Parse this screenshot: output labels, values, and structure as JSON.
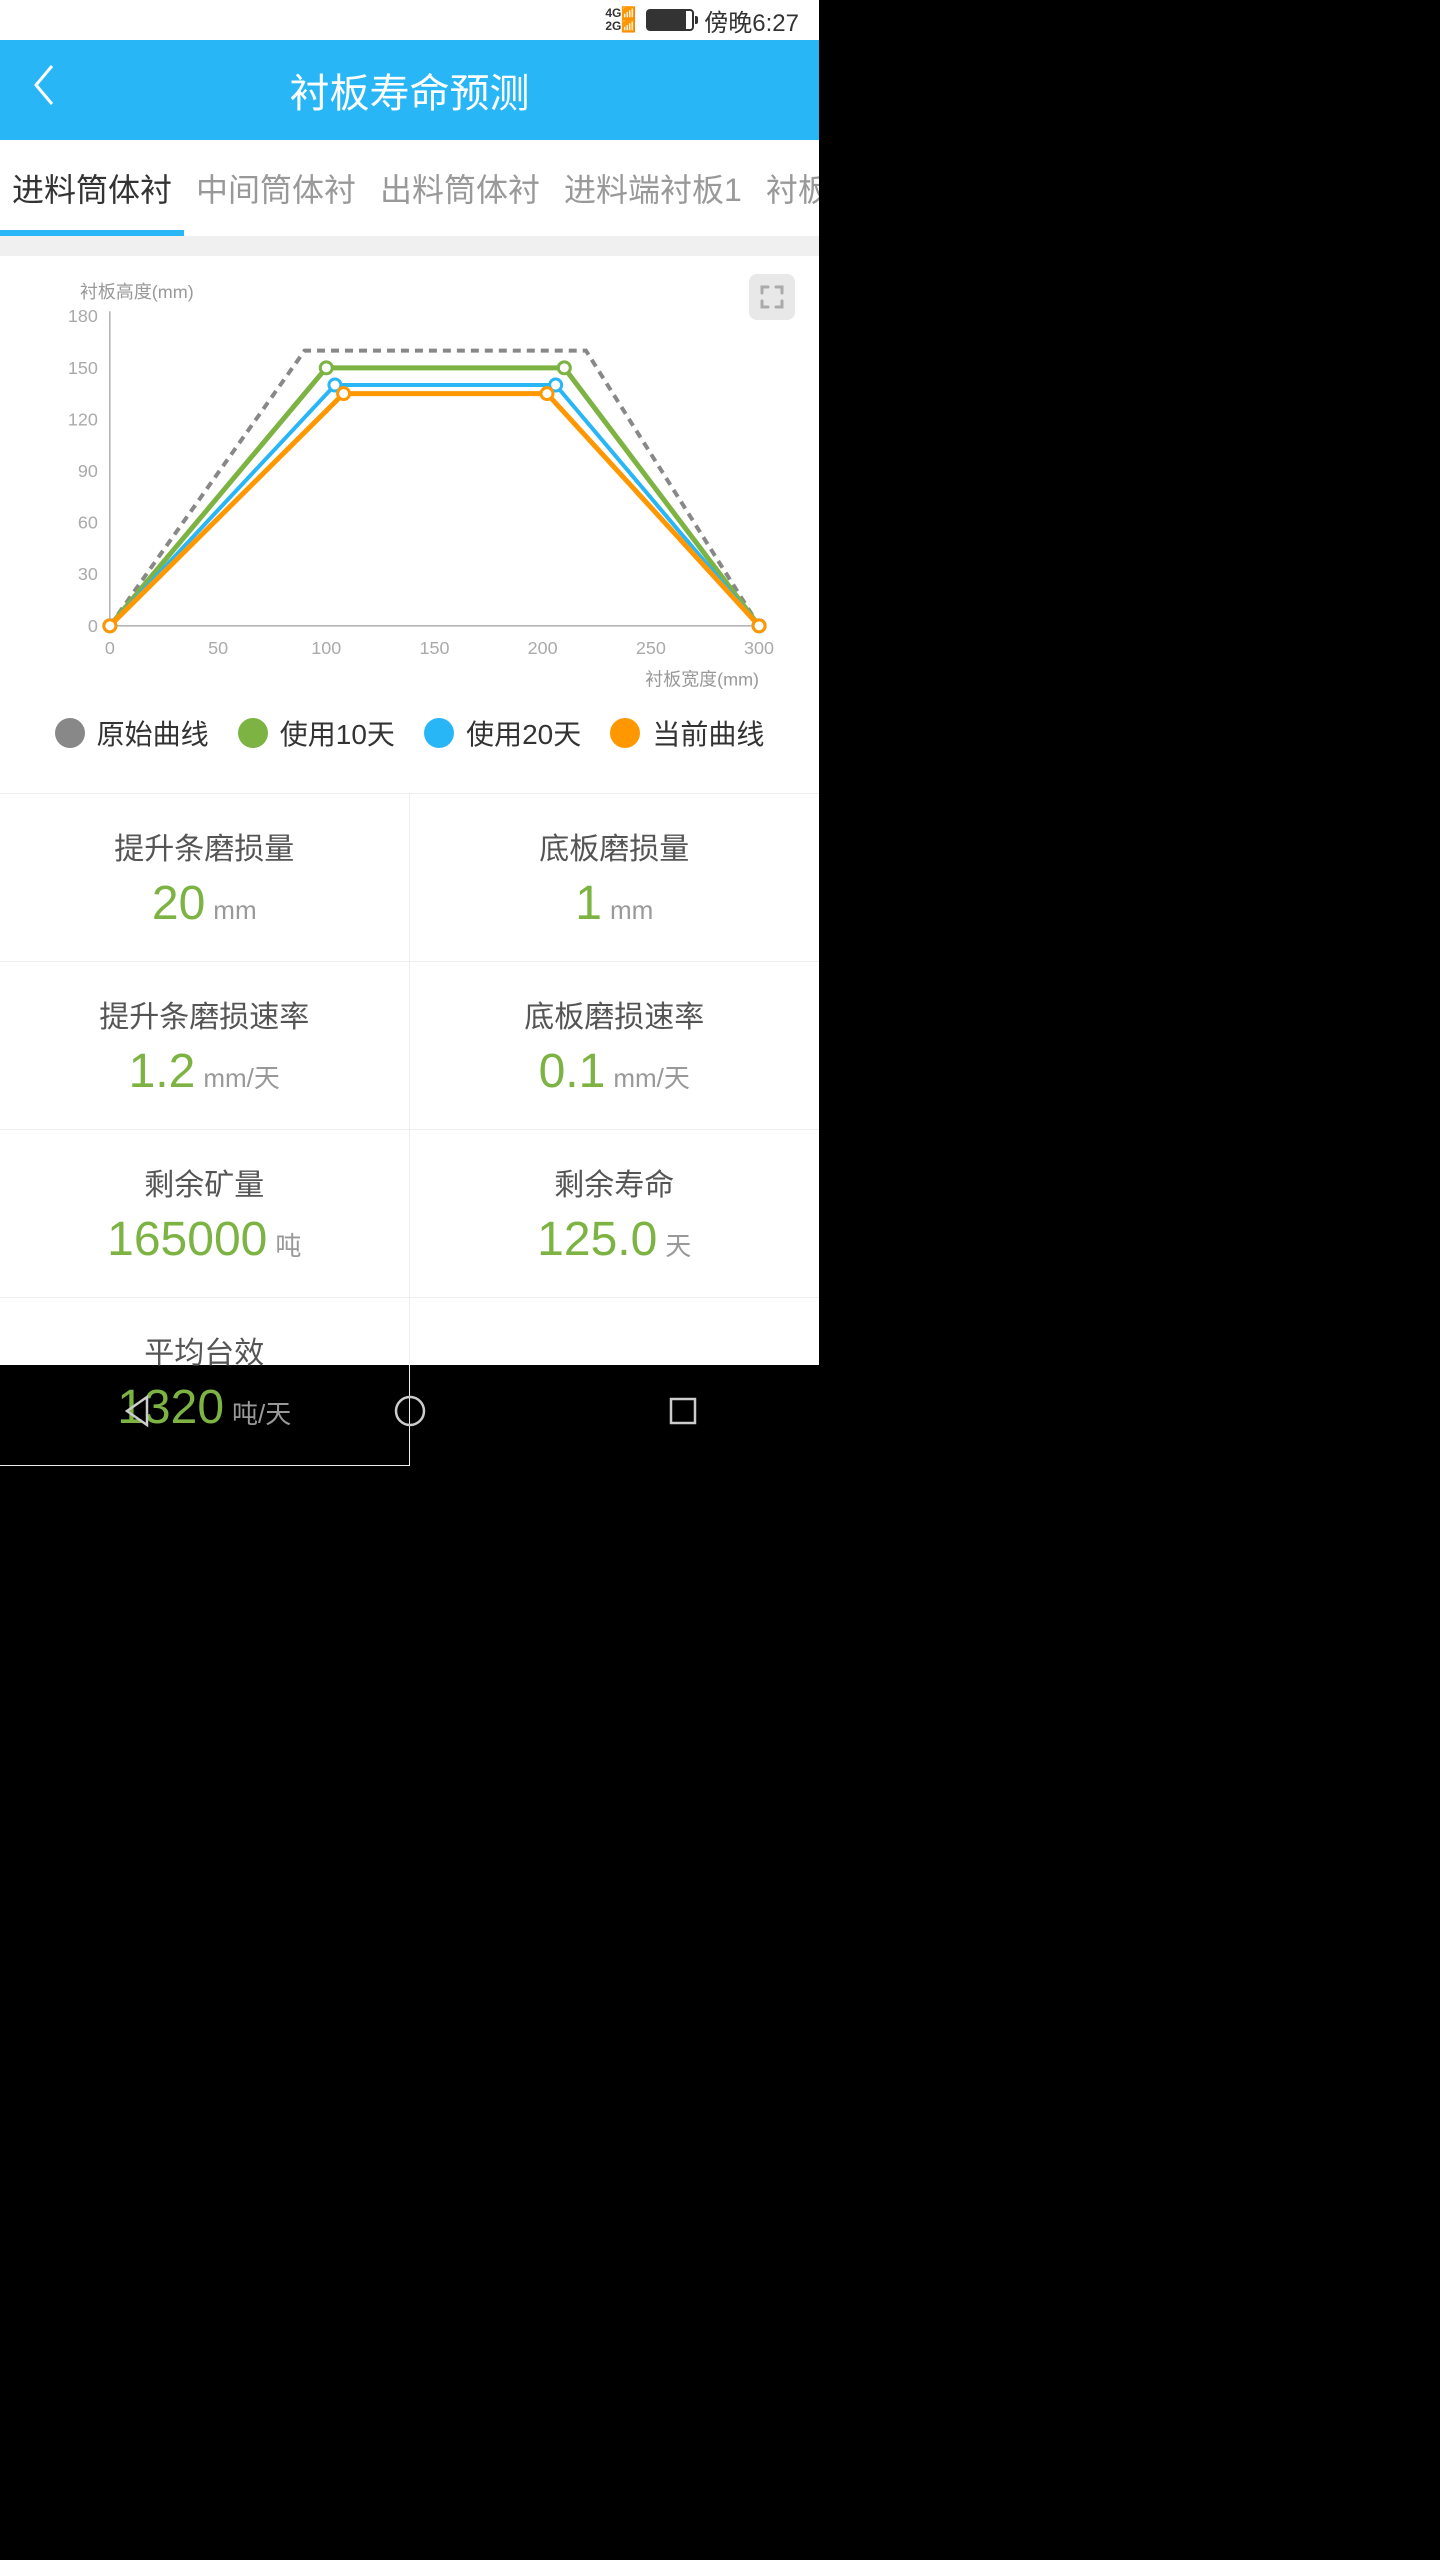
{
  "statusBar": {
    "signal": "4G 2G",
    "time": "傍晚6:27"
  },
  "header": {
    "title": "衬板寿命预测"
  },
  "tabs": [
    {
      "label": "进料筒体衬",
      "active": true
    },
    {
      "label": "中间筒体衬",
      "active": false
    },
    {
      "label": "出料筒体衬",
      "active": false
    },
    {
      "label": "进料端衬板1",
      "active": false
    },
    {
      "label": "衬板断",
      "active": false
    }
  ],
  "chart": {
    "type": "line",
    "yLabel": "衬板高度(mm)",
    "xLabel": "衬板宽度(mm)",
    "xlim": [
      0,
      300
    ],
    "ylim": [
      0,
      180
    ],
    "xTicks": [
      0,
      50,
      100,
      150,
      200,
      250,
      300
    ],
    "yTicks": [
      0,
      30,
      60,
      90,
      120,
      150,
      180
    ],
    "axisColor": "#888",
    "tickTextColor": "#aaa",
    "labelTextColor": "#999",
    "series": [
      {
        "name": "原始曲线",
        "color": "#888888",
        "dash": "8,6",
        "lineWidth": 4,
        "marker": false,
        "points": [
          [
            0,
            0
          ],
          [
            90,
            160
          ],
          [
            220,
            160
          ],
          [
            300,
            0
          ]
        ]
      },
      {
        "name": "使用10天",
        "color": "#7cb342",
        "dash": "",
        "lineWidth": 5,
        "marker": true,
        "points": [
          [
            0,
            0
          ],
          [
            100,
            150
          ],
          [
            210,
            150
          ],
          [
            300,
            0
          ]
        ]
      },
      {
        "name": "使用20天",
        "color": "#29b6f6",
        "dash": "",
        "lineWidth": 4,
        "marker": true,
        "points": [
          [
            0,
            0
          ],
          [
            104,
            140
          ],
          [
            206,
            140
          ],
          [
            300,
            0
          ]
        ]
      },
      {
        "name": "当前曲线",
        "color": "#ff9800",
        "dash": "",
        "lineWidth": 5,
        "marker": true,
        "points": [
          [
            0,
            0
          ],
          [
            108,
            135
          ],
          [
            202,
            135
          ],
          [
            300,
            0
          ]
        ]
      }
    ],
    "legend": [
      {
        "label": "原始曲线",
        "color": "#888888"
      },
      {
        "label": "使用10天",
        "color": "#7cb342"
      },
      {
        "label": "使用20天",
        "color": "#29b6f6"
      },
      {
        "label": "当前曲线",
        "color": "#ff9800"
      }
    ]
  },
  "metrics": [
    {
      "label": "提升条磨损量",
      "value": "20",
      "unit": "mm"
    },
    {
      "label": "底板磨损量",
      "value": "1",
      "unit": "mm"
    },
    {
      "label": "提升条磨损速率",
      "value": "1.2",
      "unit": "mm/天"
    },
    {
      "label": "底板磨损速率",
      "value": "0.1",
      "unit": "mm/天"
    },
    {
      "label": "剩余矿量",
      "value": "165000",
      "unit": "吨"
    },
    {
      "label": "剩余寿命",
      "value": "125.0",
      "unit": "天"
    },
    {
      "label": "平均台效",
      "value": "1320",
      "unit": "吨/天"
    }
  ],
  "colors": {
    "primary": "#29b6f6",
    "metricValue": "#7cb342"
  }
}
